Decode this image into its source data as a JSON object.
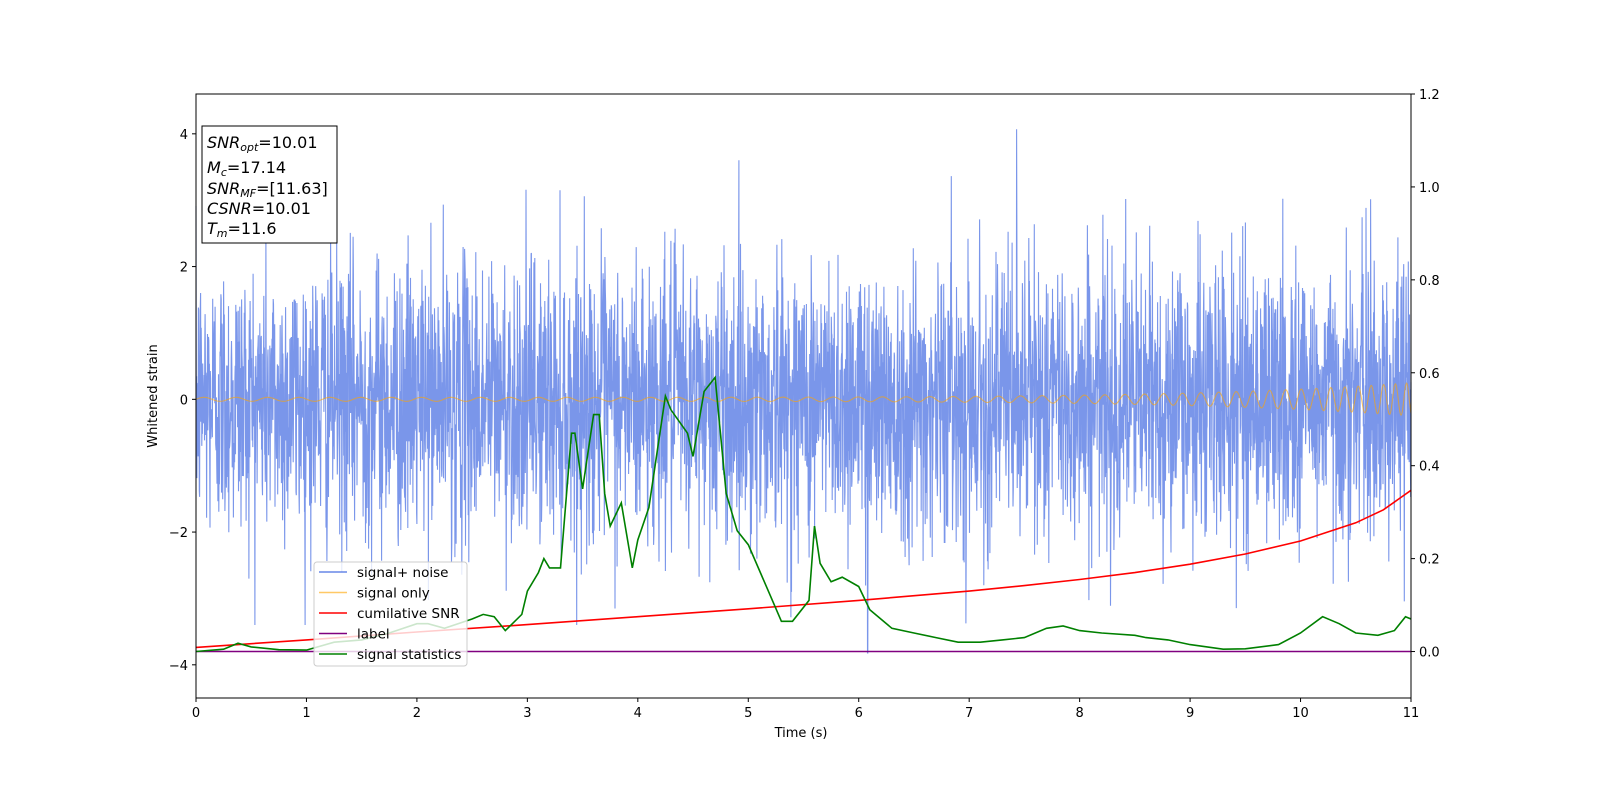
{
  "chart_data": {
    "type": "line",
    "xlabel": "Time (s)",
    "ylabel": "Whitened strain",
    "xlim": [
      0,
      11
    ],
    "ylim": [
      -4.5,
      4.6
    ],
    "y2lim": [
      -0.1,
      1.2
    ],
    "x_ticks": [
      "0",
      "1",
      "2",
      "3",
      "4",
      "5",
      "6",
      "7",
      "8",
      "9",
      "10",
      "11"
    ],
    "y_ticks": [
      "−4",
      "−2",
      "0",
      "2",
      "4"
    ],
    "y2_ticks": [
      "0.0",
      "0.2",
      "0.4",
      "0.6",
      "0.8",
      "1.0",
      "1.2"
    ],
    "grid": false,
    "legend_position": "lower-left",
    "info_box": {
      "snr_opt": {
        "sym": "SNR",
        "sub": "opt",
        "val": "=10.01"
      },
      "mc": {
        "sym": "M",
        "sub": "c",
        "val": "=17.14"
      },
      "snr_mf": {
        "sym": "SNR",
        "sub": "MF",
        "val": "=[11.63]"
      },
      "csnr": {
        "sym": "CSNR",
        "val": "=10.01"
      },
      "tm": {
        "sym": "T",
        "sub": "m",
        "val": "=11.6"
      }
    },
    "series": [
      {
        "name": "signal+ noise",
        "axis": "left",
        "color": "#4169e1",
        "description_values": {
          "amplitude_std": 1.0,
          "max": 4.07,
          "max_time": 7.43,
          "min": -3.82,
          "min_time": 6.08
        }
      },
      {
        "name": "signal only",
        "axis": "left",
        "color": "#ffa500",
        "start_amplitude": 0.03,
        "end_amplitude": 0.25
      },
      {
        "name": "cumilative SNR",
        "axis": "right",
        "color": "#ff0000",
        "x": [
          0,
          1,
          2,
          3,
          4,
          5,
          6,
          7,
          7.5,
          8,
          8.5,
          9,
          9.5,
          10,
          10.5,
          10.75,
          11
        ],
        "y": [
          0.009,
          0.025,
          0.042,
          0.058,
          0.075,
          0.092,
          0.11,
          0.13,
          0.142,
          0.155,
          0.17,
          0.188,
          0.21,
          0.238,
          0.277,
          0.305,
          0.347
        ]
      },
      {
        "name": "label",
        "axis": "right",
        "color": "#800080",
        "x": [
          0,
          11
        ],
        "y": [
          0,
          0
        ]
      },
      {
        "name": "signal statistics",
        "axis": "right",
        "color": "#008000",
        "x": [
          0,
          0.25,
          0.38,
          0.5,
          0.75,
          1.0,
          1.25,
          1.5,
          1.75,
          2.0,
          2.1,
          2.25,
          2.5,
          2.6,
          2.7,
          2.8,
          2.95,
          3.0,
          3.1,
          3.15,
          3.2,
          3.3,
          3.4,
          3.43,
          3.5,
          3.6,
          3.65,
          3.7,
          3.75,
          3.85,
          3.95,
          4.0,
          4.1,
          4.25,
          4.3,
          4.45,
          4.5,
          4.6,
          4.7,
          4.8,
          4.9,
          5.0,
          5.2,
          5.3,
          5.4,
          5.55,
          5.6,
          5.65,
          5.75,
          5.85,
          6.0,
          6.1,
          6.3,
          6.5,
          6.7,
          6.9,
          7.1,
          7.3,
          7.5,
          7.7,
          7.85,
          8.0,
          8.2,
          8.5,
          8.6,
          8.8,
          9.0,
          9.3,
          9.5,
          9.8,
          10.0,
          10.2,
          10.35,
          10.5,
          10.7,
          10.85,
          10.95,
          11.0
        ],
        "y": [
          0.0,
          0.005,
          0.018,
          0.01,
          0.004,
          0.003,
          0.02,
          0.025,
          0.04,
          0.06,
          0.06,
          0.05,
          0.07,
          0.08,
          0.075,
          0.045,
          0.08,
          0.13,
          0.17,
          0.2,
          0.18,
          0.18,
          0.47,
          0.47,
          0.35,
          0.51,
          0.51,
          0.34,
          0.27,
          0.32,
          0.18,
          0.24,
          0.31,
          0.55,
          0.52,
          0.47,
          0.42,
          0.56,
          0.59,
          0.34,
          0.26,
          0.23,
          0.12,
          0.065,
          0.065,
          0.11,
          0.27,
          0.19,
          0.15,
          0.16,
          0.14,
          0.09,
          0.05,
          0.04,
          0.03,
          0.02,
          0.02,
          0.025,
          0.03,
          0.05,
          0.055,
          0.045,
          0.04,
          0.035,
          0.03,
          0.025,
          0.015,
          0.005,
          0.006,
          0.015,
          0.04,
          0.075,
          0.06,
          0.04,
          0.035,
          0.045,
          0.075,
          0.07
        ]
      }
    ]
  }
}
